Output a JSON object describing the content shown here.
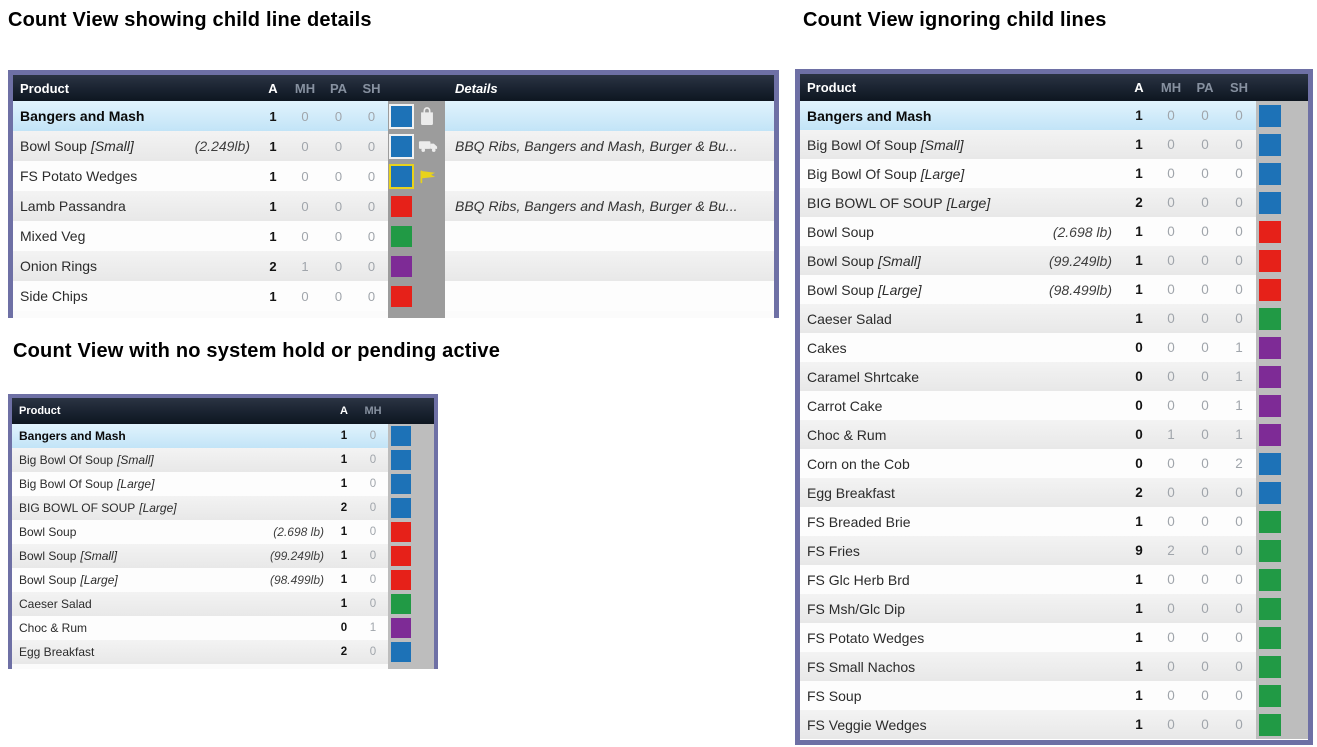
{
  "palette": {
    "border": "#6e70a5",
    "header_bg": "#1b2432",
    "header_text": "#ffffff",
    "header_muted": "#8791a0",
    "selected_row": "#c9e6f8",
    "stripe_row": "#ececec",
    "strip_dark_gray": "#9c9c9c",
    "strip_light_gray": "#bdbdbd",
    "blue": "#1d72b7",
    "red": "#e62119",
    "green": "#219a45",
    "purple": "#7e2b96",
    "yellow": "#e8d21c"
  },
  "sections": [
    {
      "title": "Count View showing child line details",
      "table": {
        "columns": {
          "product": "Product",
          "counts": [
            "A",
            "MH",
            "PA",
            "SH"
          ],
          "details": "Details"
        },
        "rows": [
          {
            "product": "Bangers and Mash",
            "bracket": "",
            "weight": "",
            "counts": [
              "1",
              "0",
              "0",
              "0"
            ],
            "color": "blue",
            "ring": "white",
            "icon": "shopping-bag",
            "details": "",
            "selected": true
          },
          {
            "product": "Bowl Soup",
            "bracket": "[Small]",
            "weight": "(2.249lb)",
            "counts": [
              "1",
              "0",
              "0",
              "0"
            ],
            "color": "blue",
            "ring": "white",
            "icon": "delivery-truck",
            "details": "BBQ Ribs, Bangers and Mash, Burger & Bu...",
            "selected": false
          },
          {
            "product": "FS Potato Wedges",
            "bracket": "",
            "weight": "",
            "counts": [
              "1",
              "0",
              "0",
              "0"
            ],
            "color": "blue",
            "ring": "yellow",
            "icon": "flag",
            "details": "",
            "selected": false
          },
          {
            "product": "Lamb Passandra",
            "bracket": "",
            "weight": "",
            "counts": [
              "1",
              "0",
              "0",
              "0"
            ],
            "color": "red",
            "ring": null,
            "icon": null,
            "details": "BBQ Ribs, Bangers and Mash, Burger & Bu...",
            "selected": false
          },
          {
            "product": "Mixed Veg",
            "bracket": "",
            "weight": "",
            "counts": [
              "1",
              "0",
              "0",
              "0"
            ],
            "color": "green",
            "ring": null,
            "icon": null,
            "details": "",
            "selected": false
          },
          {
            "product": "Onion Rings",
            "bracket": "",
            "weight": "",
            "counts": [
              "2",
              "1",
              "0",
              "0"
            ],
            "color": "purple",
            "ring": null,
            "icon": null,
            "details": "",
            "selected": false
          },
          {
            "product": "Side Chips",
            "bracket": "",
            "weight": "",
            "counts": [
              "1",
              "0",
              "0",
              "0"
            ],
            "color": "red",
            "ring": null,
            "icon": null,
            "details": "",
            "selected": false
          }
        ]
      }
    },
    {
      "title": "Count View with no system hold or pending active",
      "table": {
        "columns": {
          "product": "Product",
          "counts": [
            "A",
            "MH"
          ]
        },
        "rows": [
          {
            "product": "Bangers and Mash",
            "bracket": "",
            "weight": "",
            "counts": [
              "1",
              "0"
            ],
            "color": "blue",
            "ring": null,
            "icon": null,
            "selected": true
          },
          {
            "product": "Big Bowl Of Soup",
            "bracket": "[Small]",
            "weight": "",
            "counts": [
              "1",
              "0"
            ],
            "color": "blue",
            "ring": null,
            "icon": null,
            "selected": false
          },
          {
            "product": "Big Bowl Of Soup",
            "bracket": "[Large]",
            "weight": "",
            "counts": [
              "1",
              "0"
            ],
            "color": "blue",
            "ring": null,
            "icon": null,
            "selected": false
          },
          {
            "product": "BIG BOWL OF SOUP",
            "bracket": "[Large]",
            "weight": "",
            "counts": [
              "2",
              "0"
            ],
            "color": "blue",
            "ring": null,
            "icon": null,
            "selected": false
          },
          {
            "product": "Bowl Soup",
            "bracket": "",
            "weight": "(2.698 lb)",
            "counts": [
              "1",
              "0"
            ],
            "color": "red",
            "ring": null,
            "icon": null,
            "selected": false
          },
          {
            "product": "Bowl Soup",
            "bracket": "[Small]",
            "weight": "(99.249lb)",
            "counts": [
              "1",
              "0"
            ],
            "color": "red",
            "ring": null,
            "icon": null,
            "selected": false
          },
          {
            "product": "Bowl Soup",
            "bracket": "[Large]",
            "weight": "(98.499lb)",
            "counts": [
              "1",
              "0"
            ],
            "color": "red",
            "ring": null,
            "icon": null,
            "selected": false
          },
          {
            "product": "Caeser Salad",
            "bracket": "",
            "weight": "",
            "counts": [
              "1",
              "0"
            ],
            "color": "green",
            "ring": null,
            "icon": null,
            "selected": false
          },
          {
            "product": "Choc & Rum",
            "bracket": "",
            "weight": "",
            "counts": [
              "0",
              "1"
            ],
            "color": "purple",
            "ring": null,
            "icon": null,
            "selected": false
          },
          {
            "product": "Egg Breakfast",
            "bracket": "",
            "weight": "",
            "counts": [
              "2",
              "0"
            ],
            "color": "blue",
            "ring": null,
            "icon": null,
            "selected": false
          }
        ]
      }
    },
    {
      "title": "Count View ignoring child lines",
      "table": {
        "columns": {
          "product": "Product",
          "counts": [
            "A",
            "MH",
            "PA",
            "SH"
          ]
        },
        "rows": [
          {
            "product": "Bangers and Mash",
            "bracket": "",
            "weight": "",
            "counts": [
              "1",
              "0",
              "0",
              "0"
            ],
            "color": "blue",
            "ring": null,
            "icon": null,
            "selected": true
          },
          {
            "product": "Big Bowl Of Soup",
            "bracket": "[Small]",
            "weight": "",
            "counts": [
              "1",
              "0",
              "0",
              "0"
            ],
            "color": "blue",
            "ring": null,
            "icon": null,
            "selected": false
          },
          {
            "product": "Big Bowl Of Soup",
            "bracket": "[Large]",
            "weight": "",
            "counts": [
              "1",
              "0",
              "0",
              "0"
            ],
            "color": "blue",
            "ring": null,
            "icon": null,
            "selected": false
          },
          {
            "product": "BIG BOWL OF SOUP",
            "bracket": "[Large]",
            "weight": "",
            "counts": [
              "2",
              "0",
              "0",
              "0"
            ],
            "color": "blue",
            "ring": null,
            "icon": null,
            "selected": false
          },
          {
            "product": "Bowl Soup",
            "bracket": "",
            "weight": "(2.698 lb)",
            "counts": [
              "1",
              "0",
              "0",
              "0"
            ],
            "color": "red",
            "ring": null,
            "icon": null,
            "selected": false
          },
          {
            "product": "Bowl Soup",
            "bracket": "[Small]",
            "weight": "(99.249lb)",
            "counts": [
              "1",
              "0",
              "0",
              "0"
            ],
            "color": "red",
            "ring": null,
            "icon": null,
            "selected": false
          },
          {
            "product": "Bowl Soup",
            "bracket": "[Large]",
            "weight": "(98.499lb)",
            "counts": [
              "1",
              "0",
              "0",
              "0"
            ],
            "color": "red",
            "ring": null,
            "icon": null,
            "selected": false
          },
          {
            "product": "Caeser Salad",
            "bracket": "",
            "weight": "",
            "counts": [
              "1",
              "0",
              "0",
              "0"
            ],
            "color": "green",
            "ring": null,
            "icon": null,
            "selected": false
          },
          {
            "product": "Cakes",
            "bracket": "",
            "weight": "",
            "counts": [
              "0",
              "0",
              "0",
              "1"
            ],
            "color": "purple",
            "ring": null,
            "icon": null,
            "selected": false
          },
          {
            "product": "Caramel Shrtcake",
            "bracket": "",
            "weight": "",
            "counts": [
              "0",
              "0",
              "0",
              "1"
            ],
            "color": "purple",
            "ring": null,
            "icon": null,
            "selected": false
          },
          {
            "product": "Carrot Cake",
            "bracket": "",
            "weight": "",
            "counts": [
              "0",
              "0",
              "0",
              "1"
            ],
            "color": "purple",
            "ring": null,
            "icon": null,
            "selected": false
          },
          {
            "product": "Choc & Rum",
            "bracket": "",
            "weight": "",
            "counts": [
              "0",
              "1",
              "0",
              "1"
            ],
            "color": "purple",
            "ring": null,
            "icon": null,
            "selected": false
          },
          {
            "product": "Corn on the Cob",
            "bracket": "",
            "weight": "",
            "counts": [
              "0",
              "0",
              "0",
              "2"
            ],
            "color": "blue",
            "ring": null,
            "icon": null,
            "selected": false
          },
          {
            "product": "Egg Breakfast",
            "bracket": "",
            "weight": "",
            "counts": [
              "2",
              "0",
              "0",
              "0"
            ],
            "color": "blue",
            "ring": null,
            "icon": null,
            "selected": false
          },
          {
            "product": "FS Breaded Brie",
            "bracket": "",
            "weight": "",
            "counts": [
              "1",
              "0",
              "0",
              "0"
            ],
            "color": "green",
            "ring": null,
            "icon": null,
            "selected": false
          },
          {
            "product": "FS Fries",
            "bracket": "",
            "weight": "",
            "counts": [
              "9",
              "2",
              "0",
              "0"
            ],
            "color": "green",
            "ring": null,
            "icon": null,
            "selected": false
          },
          {
            "product": "FS Glc Herb Brd",
            "bracket": "",
            "weight": "",
            "counts": [
              "1",
              "0",
              "0",
              "0"
            ],
            "color": "green",
            "ring": null,
            "icon": null,
            "selected": false
          },
          {
            "product": "FS Msh/Glc Dip",
            "bracket": "",
            "weight": "",
            "counts": [
              "1",
              "0",
              "0",
              "0"
            ],
            "color": "green",
            "ring": null,
            "icon": null,
            "selected": false
          },
          {
            "product": "FS Potato Wedges",
            "bracket": "",
            "weight": "",
            "counts": [
              "1",
              "0",
              "0",
              "0"
            ],
            "color": "green",
            "ring": null,
            "icon": null,
            "selected": false
          },
          {
            "product": "FS Small Nachos",
            "bracket": "",
            "weight": "",
            "counts": [
              "1",
              "0",
              "0",
              "0"
            ],
            "color": "green",
            "ring": null,
            "icon": null,
            "selected": false
          },
          {
            "product": "FS Soup",
            "bracket": "",
            "weight": "",
            "counts": [
              "1",
              "0",
              "0",
              "0"
            ],
            "color": "green",
            "ring": null,
            "icon": null,
            "selected": false
          },
          {
            "product": "FS Veggie Wedges",
            "bracket": "",
            "weight": "",
            "counts": [
              "1",
              "0",
              "0",
              "0"
            ],
            "color": "green",
            "ring": null,
            "icon": null,
            "selected": false
          }
        ]
      }
    }
  ]
}
